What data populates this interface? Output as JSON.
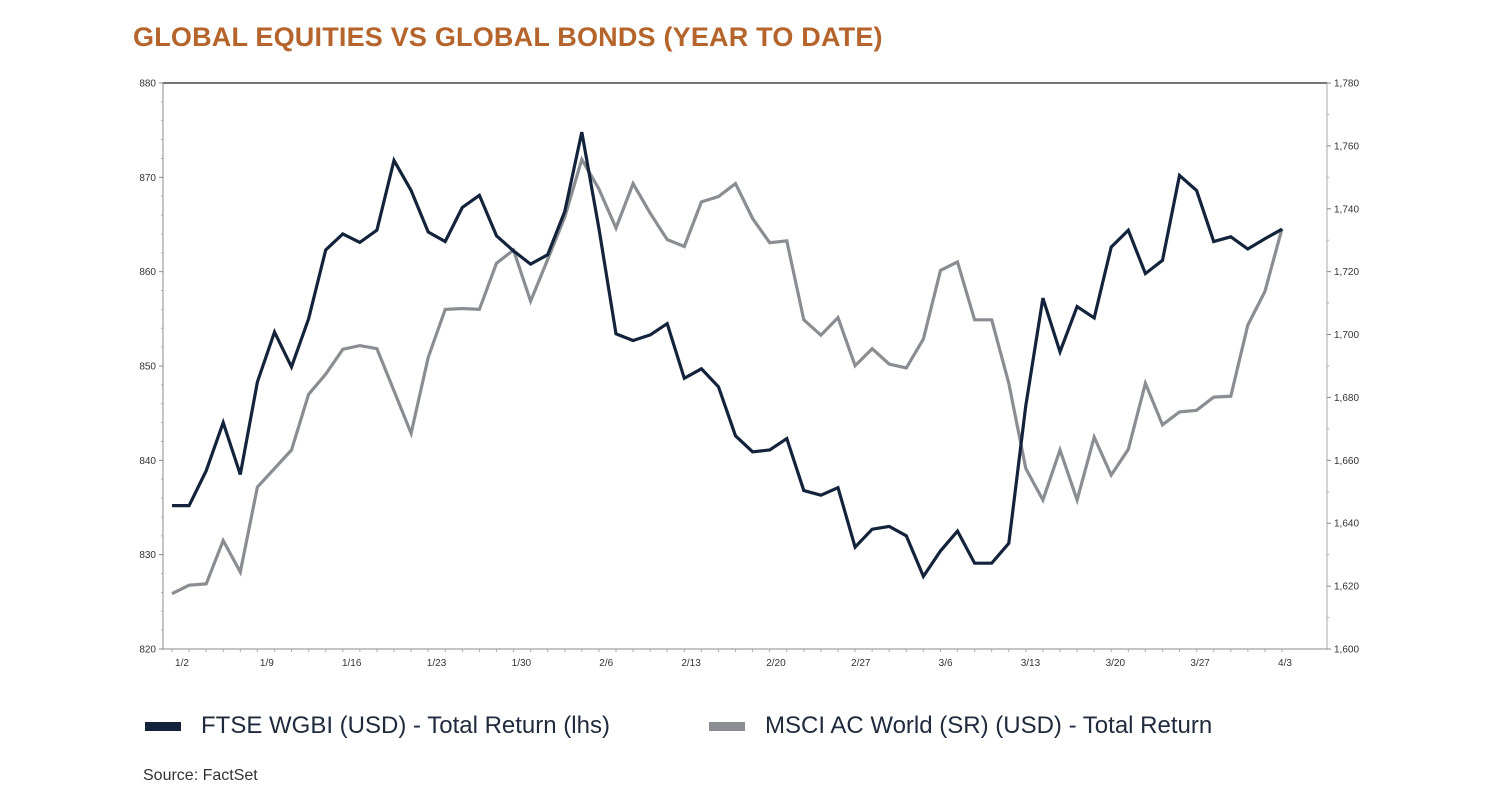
{
  "chart_data": {
    "type": "line",
    "title": "GLOBAL EQUITIES VS GLOBAL BONDS (YEAR TO DATE)",
    "source": "Source: FactSet",
    "x": [
      "1/2",
      "1/3",
      "1/6",
      "1/7",
      "1/8",
      "1/9",
      "1/10",
      "1/13",
      "1/14",
      "1/15",
      "1/16",
      "1/17",
      "1/20",
      "1/21",
      "1/22",
      "1/23",
      "1/24",
      "1/27",
      "1/28",
      "1/29",
      "1/30",
      "1/31",
      "2/3",
      "2/4",
      "2/5",
      "2/6",
      "2/7",
      "2/10",
      "2/11",
      "2/12",
      "2/13",
      "2/14",
      "2/17",
      "2/18",
      "2/19",
      "2/20",
      "2/21",
      "2/24",
      "2/25",
      "2/26",
      "2/27",
      "2/28",
      "3/3",
      "3/4",
      "3/5",
      "3/6",
      "3/7",
      "3/10",
      "3/11",
      "3/12",
      "3/13",
      "3/14",
      "3/17",
      "3/18",
      "3/19",
      "3/20",
      "3/21",
      "3/24",
      "3/25",
      "3/26",
      "3/27",
      "3/28",
      "3/31",
      "4/1",
      "4/2",
      "4/3"
    ],
    "x_tick_labels": [
      "1/2",
      "1/9",
      "1/16",
      "1/23",
      "1/30",
      "2/6",
      "2/13",
      "2/20",
      "2/27",
      "3/6",
      "3/13",
      "3/20",
      "3/27",
      "4/3"
    ],
    "y_left": {
      "range": [
        820,
        880
      ],
      "ticks": [
        "820",
        "830",
        "840",
        "850",
        "860",
        "870",
        "880"
      ]
    },
    "y_right": {
      "range": [
        1600,
        1780
      ],
      "ticks": [
        "1,600",
        "1,620",
        "1,640",
        "1,660",
        "1,680",
        "1,700",
        "1,720",
        "1,740",
        "1,760",
        "1,780"
      ]
    },
    "grid": false,
    "legend_position": "bottom",
    "series": [
      {
        "name": "FTSE WGBI (USD) - Total Return (lhs)",
        "axis": "left",
        "color": "#14233c",
        "values": [
          835.2,
          835.2,
          838.9,
          844.0,
          838.5,
          848.3,
          853.6,
          849.9,
          855.0,
          862.3,
          864.0,
          863.1,
          864.4,
          871.8,
          868.6,
          864.2,
          863.2,
          866.8,
          868.1,
          863.8,
          862.2,
          860.8,
          861.8,
          866.4,
          874.8,
          864.6,
          853.4,
          852.7,
          853.3,
          854.5,
          848.7,
          849.7,
          847.8,
          842.6,
          840.9,
          841.1,
          842.3,
          836.8,
          836.3,
          837.1,
          830.8,
          832.7,
          833.0,
          832.0,
          827.7,
          830.4,
          832.5,
          829.1,
          829.1,
          831.2,
          845.8,
          857.2,
          851.5,
          856.3,
          855.1,
          862.6,
          864.4,
          859.8,
          861.2,
          870.2,
          868.6,
          863.2,
          863.7,
          862.4,
          863.5,
          864.5
        ]
      },
      {
        "name": "MSCI AC World (SR) (USD) - Total Return",
        "axis": "right",
        "color": "#8a8d91",
        "values": [
          1617.6,
          1620.3,
          1620.7,
          1634.5,
          1624.5,
          1651.5,
          1657.4,
          1663.3,
          1681.0,
          1687.4,
          1695.3,
          1696.5,
          1695.5,
          1682.1,
          1668.6,
          1692.7,
          1708.0,
          1708.3,
          1708.0,
          1722.7,
          1726.9,
          1710.6,
          1723.9,
          1737.4,
          1755.7,
          1746.3,
          1733.9,
          1748.0,
          1738.6,
          1730.2,
          1728.0,
          1742.2,
          1743.9,
          1748.0,
          1736.9,
          1729.2,
          1729.8,
          1704.7,
          1699.8,
          1705.4,
          1690.1,
          1695.5,
          1690.6,
          1689.4,
          1698.6,
          1720.4,
          1723.1,
          1704.7,
          1704.7,
          1684.5,
          1657.4,
          1647.4,
          1663.3,
          1647.4,
          1667.4,
          1655.3,
          1663.5,
          1684.5,
          1671.3,
          1675.4,
          1675.9,
          1680.1,
          1680.4,
          1703.0,
          1713.7,
          1733.7
        ]
      }
    ]
  }
}
